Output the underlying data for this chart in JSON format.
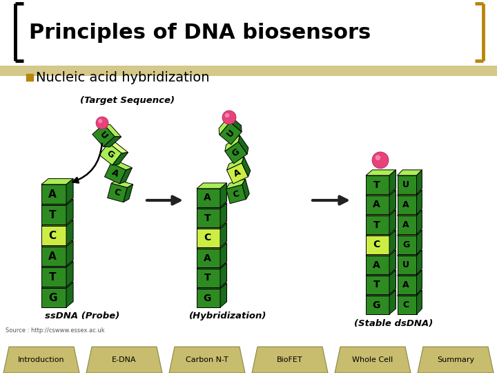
{
  "title": "Principles of DNA biosensors",
  "bullet_text": "Nucleic acid hybridization",
  "bullet_color": "#B8860B",
  "background_color": "#FFFFFF",
  "title_color": "#000000",
  "bracket_color_left": "#000000",
  "bracket_color_right": "#B8860B",
  "label_target": "(Target Sequence)",
  "label_hybridization": "(Hybridization)",
  "label_probe": "ssDNA (Probe)",
  "label_stable": "(Stable dsDNA)",
  "label_source": "Source : http://cswww.essex.ac.uk",
  "nav_tabs": [
    "Introduction",
    "E-DNA",
    "Carbon N-T",
    "BioFET",
    "Whole Cell",
    "Summary"
  ],
  "nav_bg": "#C8BC6E",
  "nav_text_color": "#000000",
  "dna_green_dark": "#2E8B22",
  "dna_green_mid": "#5CB85C",
  "dna_green_light": "#AAEE55",
  "dna_green_yellow": "#CCEE44",
  "dna_pink": "#E8427A",
  "arrow_color": "#222222",
  "header_stripe_color": "#D4C88A",
  "bracket_lw": 3.5
}
